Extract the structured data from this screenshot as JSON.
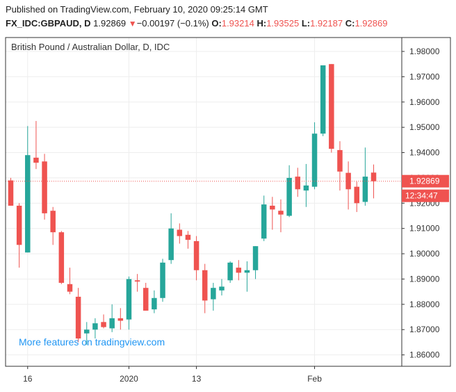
{
  "header": {
    "published": "Published on TradingView.com, February 10, 2020 09:25:14 GMT",
    "symbol": "FX_IDC:GBPAUD, D",
    "last": "1.92869",
    "change": "−0.00197 (−0.1%)",
    "open_label": "O:",
    "open": "1.93214",
    "high_label": "H:",
    "high": "1.93525",
    "low_label": "L:",
    "low": "1.92187",
    "close_label": "C:",
    "close": "1.92869"
  },
  "chart_title": "British Pound / Australian Dollar, D, IDC",
  "watermark": "More features on tradingview.com",
  "price_tag": "1.92869",
  "countdown_tag": "12:34:47",
  "colors": {
    "up": "#26a69a",
    "down": "#ef5350",
    "grid": "#eeeeee",
    "axis": "#333333",
    "watermark": "#2196f3"
  },
  "chart_data": {
    "type": "candlestick",
    "title": "British Pound / Australian Dollar, D, IDC",
    "ylim": [
      1.8555,
      1.9855
    ],
    "y_ticks": [
      "1.98000",
      "1.97000",
      "1.96000",
      "1.95000",
      "1.94000",
      "1.93000",
      "1.92000",
      "1.91000",
      "1.90000",
      "1.89000",
      "1.88000",
      "1.87000",
      "1.86000"
    ],
    "x_ticks": [
      {
        "label": "16",
        "index": 2
      },
      {
        "label": "2020",
        "index": 14
      },
      {
        "label": "13",
        "index": 22
      },
      {
        "label": "Feb",
        "index": 36
      }
    ],
    "last_price": 1.92869,
    "candles": [
      {
        "o": 1.929,
        "h": 1.93,
        "l": 1.919,
        "c": 1.919
      },
      {
        "o": 1.919,
        "h": 1.92,
        "l": 1.8945,
        "c": 1.9035
      },
      {
        "o": 1.9005,
        "h": 1.9505,
        "l": 1.9005,
        "c": 1.939
      },
      {
        "o": 1.938,
        "h": 1.9525,
        "l": 1.9335,
        "c": 1.936
      },
      {
        "o": 1.9365,
        "h": 1.9395,
        "l": 1.9135,
        "c": 1.916
      },
      {
        "o": 1.917,
        "h": 1.9185,
        "l": 1.9035,
        "c": 1.9085
      },
      {
        "o": 1.9085,
        "h": 1.909,
        "l": 1.888,
        "c": 1.8885
      },
      {
        "o": 1.888,
        "h": 1.8945,
        "l": 1.884,
        "c": 1.885
      },
      {
        "o": 1.883,
        "h": 1.8865,
        "l": 1.865,
        "c": 1.8665
      },
      {
        "o": 1.8685,
        "h": 1.873,
        "l": 1.864,
        "c": 1.87
      },
      {
        "o": 1.87,
        "h": 1.8745,
        "l": 1.8665,
        "c": 1.8725
      },
      {
        "o": 1.873,
        "h": 1.876,
        "l": 1.8705,
        "c": 1.871
      },
      {
        "o": 1.8705,
        "h": 1.88,
        "l": 1.869,
        "c": 1.8745
      },
      {
        "o": 1.8745,
        "h": 1.8785,
        "l": 1.87,
        "c": 1.8735
      },
      {
        "o": 1.874,
        "h": 1.891,
        "l": 1.87,
        "c": 1.89
      },
      {
        "o": 1.8895,
        "h": 1.892,
        "l": 1.885,
        "c": 1.889
      },
      {
        "o": 1.8865,
        "h": 1.8885,
        "l": 1.8775,
        "c": 1.8775
      },
      {
        "o": 1.878,
        "h": 1.8855,
        "l": 1.8765,
        "c": 1.8825
      },
      {
        "o": 1.8825,
        "h": 1.898,
        "l": 1.881,
        "c": 1.8965
      },
      {
        "o": 1.8975,
        "h": 1.916,
        "l": 1.896,
        "c": 1.91
      },
      {
        "o": 1.9095,
        "h": 1.912,
        "l": 1.904,
        "c": 1.907
      },
      {
        "o": 1.9075,
        "h": 1.909,
        "l": 1.902,
        "c": 1.9055
      },
      {
        "o": 1.905,
        "h": 1.907,
        "l": 1.8895,
        "c": 1.8935
      },
      {
        "o": 1.8935,
        "h": 1.896,
        "l": 1.8765,
        "c": 1.8815
      },
      {
        "o": 1.882,
        "h": 1.8885,
        "l": 1.8775,
        "c": 1.8865
      },
      {
        "o": 1.8855,
        "h": 1.89,
        "l": 1.8835,
        "c": 1.887
      },
      {
        "o": 1.8895,
        "h": 1.897,
        "l": 1.8885,
        "c": 1.8965
      },
      {
        "o": 1.8945,
        "h": 1.8975,
        "l": 1.8895,
        "c": 1.8925
      },
      {
        "o": 1.8925,
        "h": 1.897,
        "l": 1.885,
        "c": 1.8935
      },
      {
        "o": 1.8935,
        "h": 1.903,
        "l": 1.89,
        "c": 1.903
      },
      {
        "o": 1.906,
        "h": 1.923,
        "l": 1.905,
        "c": 1.9195
      },
      {
        "o": 1.919,
        "h": 1.9225,
        "l": 1.9095,
        "c": 1.9175
      },
      {
        "o": 1.917,
        "h": 1.9215,
        "l": 1.9085,
        "c": 1.9155
      },
      {
        "o": 1.915,
        "h": 1.935,
        "l": 1.9145,
        "c": 1.93
      },
      {
        "o": 1.9305,
        "h": 1.934,
        "l": 1.9225,
        "c": 1.9255
      },
      {
        "o": 1.925,
        "h": 1.9355,
        "l": 1.9185,
        "c": 1.927
      },
      {
        "o": 1.9265,
        "h": 1.952,
        "l": 1.9255,
        "c": 1.9475
      },
      {
        "o": 1.9475,
        "h": 1.9745,
        "l": 1.9465,
        "c": 1.9745
      },
      {
        "o": 1.975,
        "h": 1.975,
        "l": 1.94,
        "c": 1.9415
      },
      {
        "o": 1.941,
        "h": 1.9445,
        "l": 1.925,
        "c": 1.9325
      },
      {
        "o": 1.932,
        "h": 1.9365,
        "l": 1.9175,
        "c": 1.9255
      },
      {
        "o": 1.9265,
        "h": 1.9285,
        "l": 1.9165,
        "c": 1.92
      },
      {
        "o": 1.9205,
        "h": 1.942,
        "l": 1.919,
        "c": 1.9305
      },
      {
        "o": 1.9321,
        "h": 1.9353,
        "l": 1.9219,
        "c": 1.9287
      }
    ]
  }
}
